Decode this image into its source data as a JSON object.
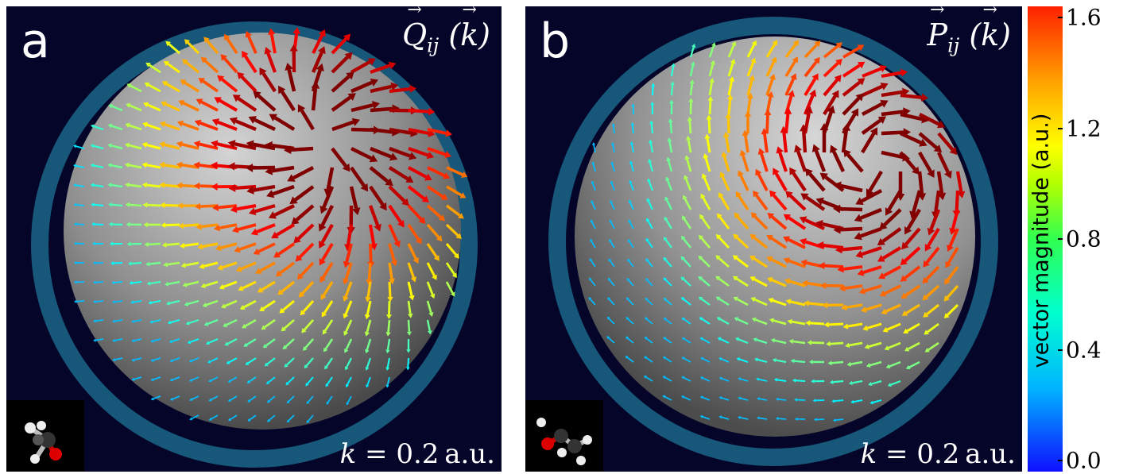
{
  "panels": [
    {
      "letter": "a",
      "title": {
        "symbol": "Q",
        "subscript": "ij",
        "argument": "k"
      },
      "k_label": {
        "variable": "k",
        "equals": " = 0.2 ",
        "unit": "a.u."
      },
      "molecule_icon": "ethanal-molecule-icon"
    },
    {
      "letter": "b",
      "title": {
        "symbol": "P",
        "subscript": "ij",
        "argument": "k"
      },
      "k_label": {
        "variable": "k",
        "equals": " = 0.2 ",
        "unit": "a.u."
      },
      "molecule_icon": "propenol-molecule-icon"
    }
  ],
  "colorbar": {
    "label": "vector magnitude (a.u.)",
    "ticks": [
      "0.0",
      "0.4",
      "0.8",
      "1.2",
      "1.6"
    ],
    "range": [
      0.0,
      1.6
    ],
    "colormap": "jet"
  },
  "colors": {
    "background": "#05052a",
    "sphere": "#9a9a9a"
  }
}
